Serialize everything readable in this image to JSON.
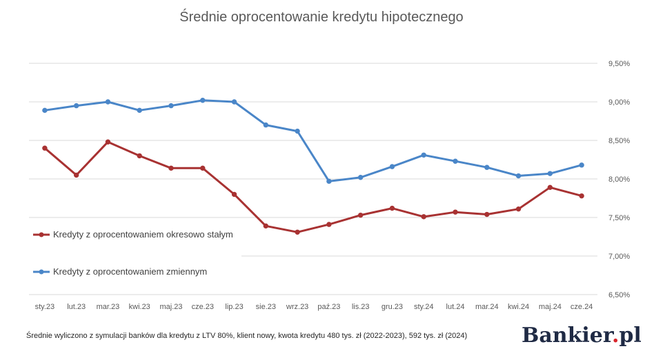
{
  "chart_data": {
    "type": "line",
    "title": "Średnie oprocentowanie kredytu hipotecznego",
    "categories": [
      "sty.23",
      "lut.23",
      "mar.23",
      "kwi.23",
      "maj.23",
      "cze.23",
      "lip.23",
      "sie.23",
      "wrz.23",
      "paź.23",
      "lis.23",
      "gru.23",
      "sty.24",
      "lut.24",
      "mar.24",
      "kwi.24",
      "maj.24",
      "cze.24"
    ],
    "series": [
      {
        "name": "Kredyty z oprocentowaniem okresowo stałym",
        "color": "#a83232",
        "values": [
          8.4,
          8.05,
          8.48,
          8.3,
          8.14,
          8.14,
          7.8,
          7.39,
          7.31,
          7.41,
          7.53,
          7.62,
          7.51,
          7.57,
          7.54,
          7.61,
          7.89,
          7.78
        ]
      },
      {
        "name": "Kredyty z oprocentowaniem zmiennym",
        "color": "#4a86c8",
        "values": [
          8.89,
          8.95,
          9.0,
          8.89,
          8.95,
          9.02,
          9.0,
          8.7,
          8.62,
          7.97,
          8.02,
          8.16,
          8.31,
          8.23,
          8.15,
          8.04,
          8.07,
          8.18
        ]
      }
    ],
    "yticks": [
      "9,50%",
      "9,00%",
      "8,50%",
      "8,00%",
      "7,50%",
      "7,00%",
      "6,50%"
    ],
    "ylim": [
      6.5,
      9.5
    ],
    "grid": true,
    "legend_position": "left"
  },
  "footnote": "Średnie wyliczono z symulacji banków dla kredytu z LTV 80%, klient nowy, kwota kredytu 480 tys. zł (2022-2023), 592 tys. zł (2024)",
  "logo": {
    "main": "Bankier",
    "dot": ".",
    "suffix": "pl"
  }
}
